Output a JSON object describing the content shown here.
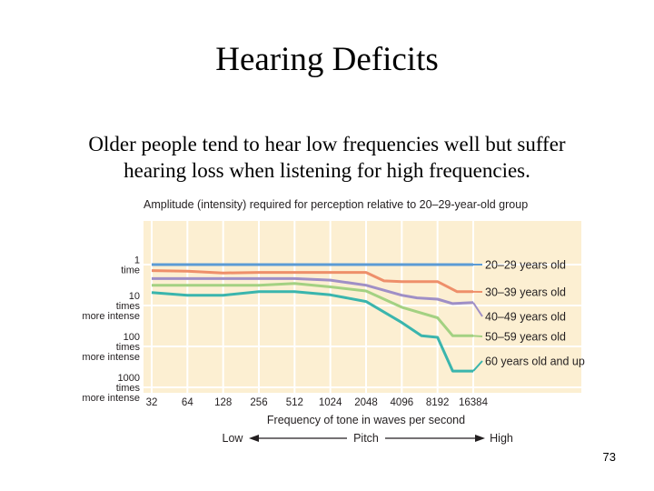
{
  "slide": {
    "title": "Hearing Deficits",
    "body_line1": "Older people tend to hear low frequencies well but suffer",
    "body_line2": "hearing loss when listening for high frequencies.",
    "page_number": "73"
  },
  "chart_data": {
    "type": "line",
    "title": "Amplitude (intensity) required for perception relative to 20–29-year-old group",
    "xlabel": "Frequency of tone in waves per second",
    "x_scale": "log2",
    "x": [
      32,
      64,
      128,
      256,
      512,
      1024,
      2048,
      4096,
      8192,
      16384
    ],
    "x_tick_labels": [
      "32",
      "64",
      "128",
      "256",
      "512",
      "1024",
      "2048",
      "4096",
      "8192",
      "16384"
    ],
    "y_scale": "log10",
    "y_ticks": [
      {
        "value": 1,
        "label": "1 time"
      },
      {
        "value": 10,
        "label": "10 times more intense"
      },
      {
        "value": 100,
        "label": "100 times more intense"
      },
      {
        "value": 1000,
        "label": "1000 times more intense"
      }
    ],
    "ylim": [
      2000,
      0.5
    ],
    "y_axis_inverted": true,
    "pitch_axis": {
      "low": "Low",
      "mid": "Pitch",
      "high": "High"
    },
    "series": [
      {
        "name": "20–29 years old",
        "color": "#5b9bd5",
        "x": [
          32,
          16384
        ],
        "y": [
          1,
          1
        ]
      },
      {
        "name": "30–39 years old",
        "color": "#ee8f6a",
        "x": [
          32,
          64,
          128,
          256,
          512,
          1024,
          2048,
          2900,
          4096,
          6000,
          8192,
          12000,
          16384
        ],
        "y": [
          1.4,
          1.45,
          1.6,
          1.55,
          1.55,
          1.55,
          1.55,
          2.5,
          2.6,
          2.6,
          2.6,
          4.6,
          4.6
        ]
      },
      {
        "name": "40–49 years old",
        "color": "#9f8fc6",
        "x": [
          32,
          64,
          128,
          256,
          512,
          1024,
          2048,
          4096,
          5500,
          8192,
          11000,
          16384
        ],
        "y": [
          2.2,
          2.2,
          2.2,
          2.2,
          2.2,
          2.4,
          3.2,
          5.6,
          6.5,
          7,
          9,
          8.5
        ]
      },
      {
        "name": "50–59 years old",
        "color": "#a3d182",
        "x": [
          32,
          64,
          128,
          256,
          512,
          1024,
          2048,
          4096,
          8192,
          11000,
          16384
        ],
        "y": [
          3.2,
          3.2,
          3.2,
          3.2,
          2.9,
          3.5,
          4.4,
          11,
          20,
          55,
          55
        ]
      },
      {
        "name": "60 years old and up",
        "color": "#3ab5ad",
        "x": [
          32,
          64,
          128,
          256,
          512,
          1024,
          2048,
          4096,
          6000,
          8192,
          11000,
          16384
        ],
        "y": [
          4.8,
          5.6,
          5.6,
          4.6,
          4.6,
          5.5,
          8,
          26,
          55,
          60,
          400,
          400
        ]
      }
    ],
    "legend_placement": "right"
  },
  "colors": {
    "plot_background": "#fcefd2",
    "gridline": "#ffffff",
    "axis_text": "#231f20"
  }
}
